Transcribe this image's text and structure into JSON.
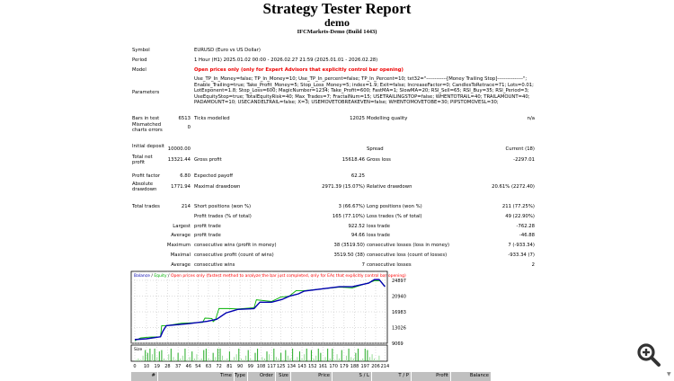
{
  "header": {
    "title": "Strategy Tester Report",
    "name": "demo",
    "server": "IFCMarkets-Demo (Build 1443)"
  },
  "info": {
    "symbol_label": "Symbol",
    "symbol": "EURUSD (Euro vs US Dollar)",
    "period_label": "Period",
    "period": "1 Hour (H1) 2025.01.02 00:00 - 2026.02.27 21:59 (2025.01.01 - 2026.02.28)",
    "model_label": "Model",
    "model": "Open prices only (only for Expert Advisors that explicitly control bar opening)",
    "parameters_label": "Parameters",
    "parameters": [
      "Use_TP_In_Money=false; TP_In_Money=10; Use_TP_In_percent=false; TP_In_Percent=10; txt32=\"------------[Money Trailing Stop]---------------\";",
      "Enable_Trailing=true; Take_Profit_Money=5; Stop_Loss_Money=5; index=1.9; Exit=false; IncreaseFactor=0; CandlesToRetrace=71; Lots=0.01;",
      "LotExponent=1.8; Stop_Loss=600; MagicNumber=1234; Take_Profit=600; FastMA=1; SlowMA=20; RSI_Sell=65; RSI_Buy=35; RSI_Period=3;",
      "UseEquityStop=true; TotalEquityRisk=40; Max_Trades=7; FractalNum=15; USETRAILINGSTOP=false; WHENTOTRAIL=40; TRAILAMOUNT=40;",
      "PADAMOUNT=10; USECANDELTRAIL=false; X=3; USEMOVETOBREAKEVEN=false; WHENTOMOVETOBE=30; PIPSTOMOVESL=30;"
    ]
  },
  "stats": [
    {
      "l1": "Bars in test",
      "v1": "6513",
      "l2": "Ticks modelled",
      "v2": "12025",
      "l3": "Modelling quality",
      "v3": "n/a"
    },
    {
      "l1": "Mismatched charts errors",
      "v1": "0",
      "l2": "",
      "v2": "",
      "l3": "",
      "v3": ""
    },
    {
      "l1": "Initial deposit",
      "v1": "10000.00",
      "l2": "",
      "v2": "",
      "l3": "Spread",
      "v3": "Current (18)"
    },
    {
      "l1": "Total net profit",
      "v1": "13321.44",
      "l2": "Gross profit",
      "v2": "15618.46",
      "l3": "Gross loss",
      "v3": "-2297.01"
    },
    {
      "l1": "Profit factor",
      "v1": "6.80",
      "l2": "Expected payoff",
      "v2": "62.25",
      "l3": "",
      "v3": ""
    },
    {
      "l1": "Absolute drawdown",
      "v1": "1771.94",
      "l2": "Maximal drawdown",
      "v2": "2971.39 (15.07%)",
      "l3": "Relative drawdown",
      "v3": "20.61% (2272.40)"
    },
    {
      "l1": "Total trades",
      "v1": "214",
      "l2": "Short positions (won %)",
      "v2": "3 (66.67%)",
      "l3": "Long positions (won %)",
      "v3": "211 (77.25%)"
    },
    {
      "l1": "",
      "v1": "",
      "l2": "Profit trades (% of total)",
      "v2": "165 (77.10%)",
      "l3": "Loss trades (% of total)",
      "v3": "49 (22.90%)"
    },
    {
      "l1": "",
      "v1": "Largest",
      "l2": "profit trade",
      "v2": "922.52",
      "l3": "loss trade",
      "v3": "-762.28"
    },
    {
      "l1": "",
      "v1": "Average",
      "l2": "profit trade",
      "v2": "94.66",
      "l3": "loss trade",
      "v3": "-46.88"
    },
    {
      "l1": "",
      "v1": "Maximum",
      "l2": "consecutive wins (profit in money)",
      "v2": "38 (3519.50)",
      "l3": "consecutive losses (loss in money)",
      "v3": "7 (-933.34)"
    },
    {
      "l1": "",
      "v1": "Maximal",
      "l2": "consecutive profit (count of wins)",
      "v2": "3519.50 (38)",
      "l3": "consecutive loss (count of losses)",
      "v3": "-933.34 (7)"
    },
    {
      "l1": "",
      "v1": "Average",
      "l2": "consecutive wins",
      "v2": "7",
      "l3": "consecutive losses",
      "v3": "2"
    }
  ],
  "chart_data": {
    "type": "line",
    "legend": {
      "balance": "Balance",
      "equity": "Equity",
      "note": "Open prices only (fastest method to analyze the bar just completed, only for EAs that explicitly control bar opening)"
    },
    "colors": {
      "balance": "#0000b0",
      "equity": "#00b000",
      "note": "#ff0000",
      "size": "#00b000"
    },
    "xlim": [
      0,
      216
    ],
    "ylim": [
      9069,
      24897
    ],
    "x_ticks": [
      0,
      10,
      19,
      28,
      37,
      46,
      54,
      63,
      72,
      81,
      90,
      99,
      108,
      117,
      125,
      134,
      143,
      152,
      161,
      170,
      179,
      188,
      197,
      206,
      214
    ],
    "y_ticks": [
      "24897",
      "20940",
      "16983",
      "13026",
      "9069"
    ],
    "size_label": "Size",
    "balance": [
      [
        0,
        10000
      ],
      [
        10,
        10200
      ],
      [
        22,
        10700
      ],
      [
        24,
        12100
      ],
      [
        27,
        13500
      ],
      [
        46,
        14000
      ],
      [
        62,
        14600
      ],
      [
        70,
        15100
      ],
      [
        78,
        16700
      ],
      [
        88,
        17600
      ],
      [
        102,
        17800
      ],
      [
        107,
        19400
      ],
      [
        117,
        19400
      ],
      [
        126,
        20100
      ],
      [
        132,
        20900
      ],
      [
        140,
        21500
      ],
      [
        145,
        22200
      ],
      [
        175,
        23300
      ],
      [
        186,
        23300
      ],
      [
        200,
        24200
      ],
      [
        205,
        25100
      ],
      [
        209,
        25100
      ],
      [
        214,
        23300
      ]
    ],
    "equity": [
      [
        0,
        9700
      ],
      [
        5,
        10400
      ],
      [
        12,
        10600
      ],
      [
        22,
        10700
      ],
      [
        23,
        13500
      ],
      [
        27,
        13500
      ],
      [
        40,
        14100
      ],
      [
        58,
        14300
      ],
      [
        60,
        15400
      ],
      [
        66,
        15300
      ],
      [
        67,
        14500
      ],
      [
        69,
        15000
      ],
      [
        72,
        17800
      ],
      [
        78,
        17800
      ],
      [
        80,
        17800
      ],
      [
        88,
        17700
      ],
      [
        102,
        18000
      ],
      [
        104,
        20000
      ],
      [
        117,
        19600
      ],
      [
        125,
        20700
      ],
      [
        132,
        20900
      ],
      [
        138,
        22300
      ],
      [
        145,
        22300
      ],
      [
        152,
        22500
      ],
      [
        175,
        23200
      ],
      [
        186,
        23000
      ],
      [
        200,
        24300
      ],
      [
        205,
        24800
      ],
      [
        210,
        24800
      ],
      [
        214,
        23400
      ]
    ],
    "sizes": [
      1,
      2,
      1,
      4,
      8,
      6,
      9,
      5,
      9,
      3,
      7,
      8,
      2,
      1,
      5,
      9,
      3,
      1,
      6,
      2,
      4,
      9,
      1,
      3,
      7,
      2,
      5,
      1,
      2,
      8,
      9,
      2,
      1,
      6,
      3,
      9,
      9,
      4,
      1,
      2,
      7,
      1,
      3,
      5,
      9,
      2,
      1,
      4,
      8,
      2,
      1,
      6,
      9,
      1,
      3,
      2,
      7,
      5,
      1,
      9,
      3,
      2,
      6,
      1,
      8,
      4,
      2,
      9,
      1,
      3,
      7,
      2,
      5,
      9,
      1,
      8,
      2,
      4,
      9,
      6,
      1,
      3,
      9,
      2,
      9,
      1,
      5,
      2,
      8,
      1,
      4,
      9,
      3,
      2,
      6,
      9,
      1,
      2,
      9,
      8,
      3,
      5,
      2,
      1,
      4
    ]
  },
  "trades_table": {
    "columns": [
      "#",
      "Time",
      "Type",
      "Order",
      "Size",
      "Price",
      "S / L",
      "T / P",
      "Profit",
      "Balance"
    ]
  }
}
